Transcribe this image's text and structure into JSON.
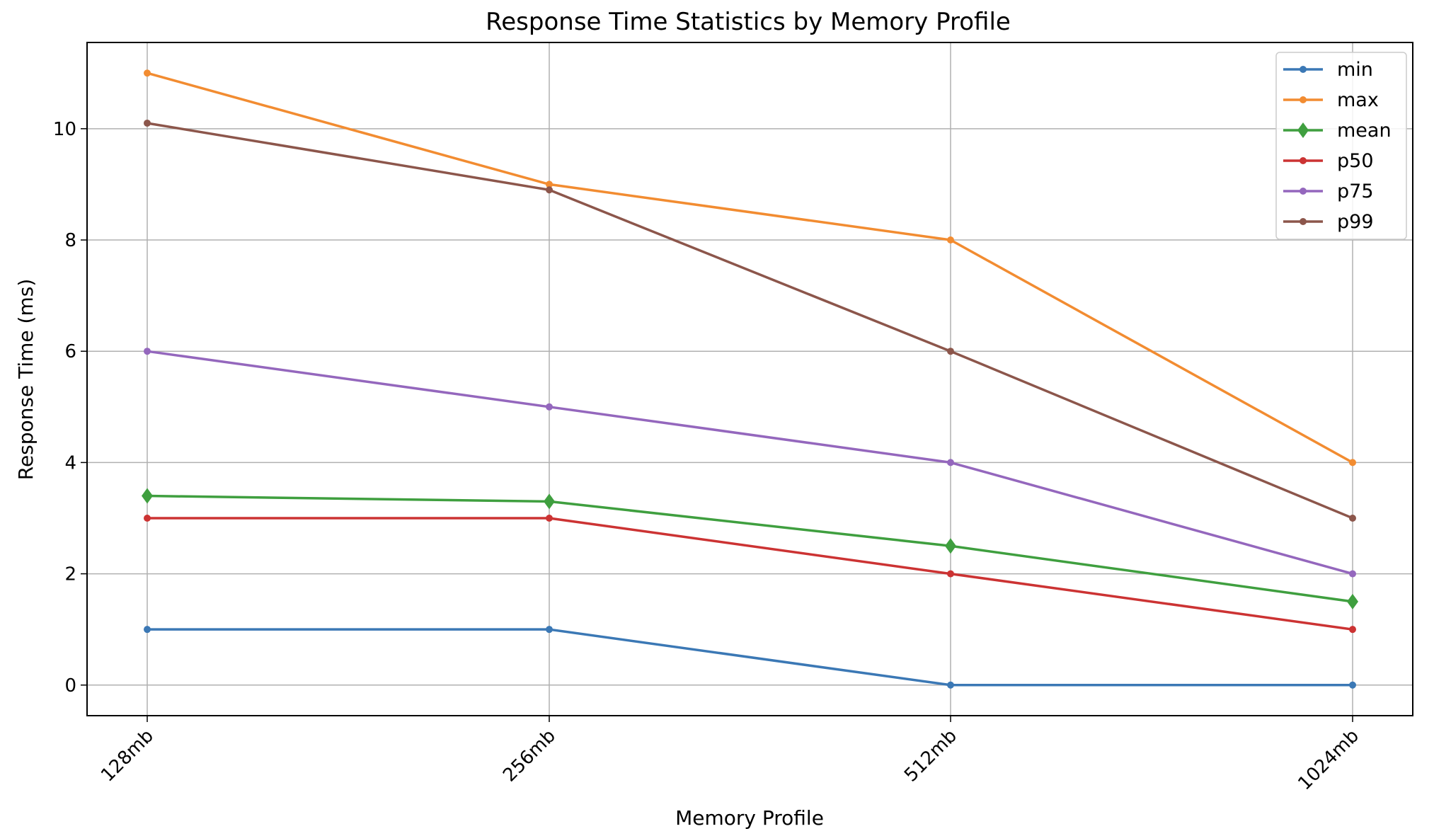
{
  "chart_data": {
    "type": "line",
    "title": "Response Time Statistics by Memory Profile",
    "xlabel": "Memory Profile",
    "ylabel": "Response Time (ms)",
    "categories": [
      "128mb",
      "256mb",
      "512mb",
      "1024mb"
    ],
    "ylim": [
      -0.55,
      11.55
    ],
    "yticks": [
      0,
      2,
      4,
      6,
      8,
      10
    ],
    "grid": true,
    "legend_position": "top-right",
    "series": [
      {
        "name": "min",
        "values": [
          1,
          1,
          0,
          0
        ],
        "color": "#3b78b5",
        "marker": "circle"
      },
      {
        "name": "max",
        "values": [
          11,
          9,
          8,
          4
        ],
        "color": "#f28c31",
        "marker": "circle"
      },
      {
        "name": "mean",
        "values": [
          3.4,
          3.3,
          2.5,
          1.5
        ],
        "color": "#3f9f3f",
        "marker": "diamond"
      },
      {
        "name": "p50",
        "values": [
          3,
          3,
          2,
          1
        ],
        "color": "#cc3333",
        "marker": "circle"
      },
      {
        "name": "p75",
        "values": [
          6,
          5,
          4,
          2
        ],
        "color": "#9467bd",
        "marker": "circle"
      },
      {
        "name": "p99",
        "values": [
          10.1,
          8.9,
          6,
          3
        ],
        "color": "#8c564b",
        "marker": "circle"
      }
    ]
  }
}
